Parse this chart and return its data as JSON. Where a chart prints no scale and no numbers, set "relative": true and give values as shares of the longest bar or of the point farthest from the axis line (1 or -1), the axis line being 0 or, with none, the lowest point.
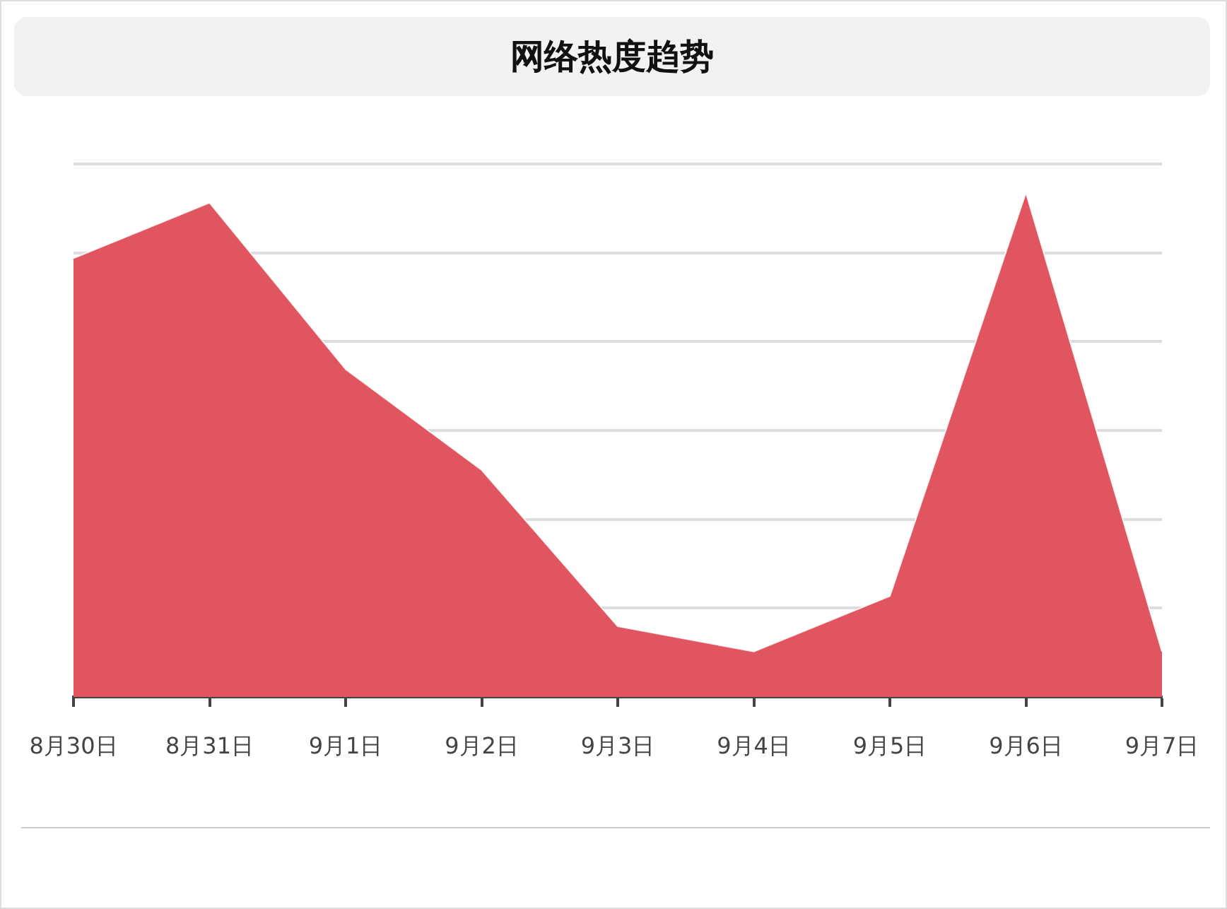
{
  "chart_data": {
    "type": "area",
    "title": "网络热度趋势",
    "categories": [
      "8月30日",
      "8月31日",
      "9月1日",
      "9月2日",
      "9月3日",
      "9月4日",
      "9月5日",
      "9月6日",
      "9月7日"
    ],
    "values": [
      0.87,
      0.98,
      0.65,
      0.45,
      0.14,
      0.09,
      0.2,
      1,
      0.09
    ],
    "color": "#e0555f",
    "relative": true,
    "tick_labels": "x",
    "grid": "y",
    "legend": false
  }
}
